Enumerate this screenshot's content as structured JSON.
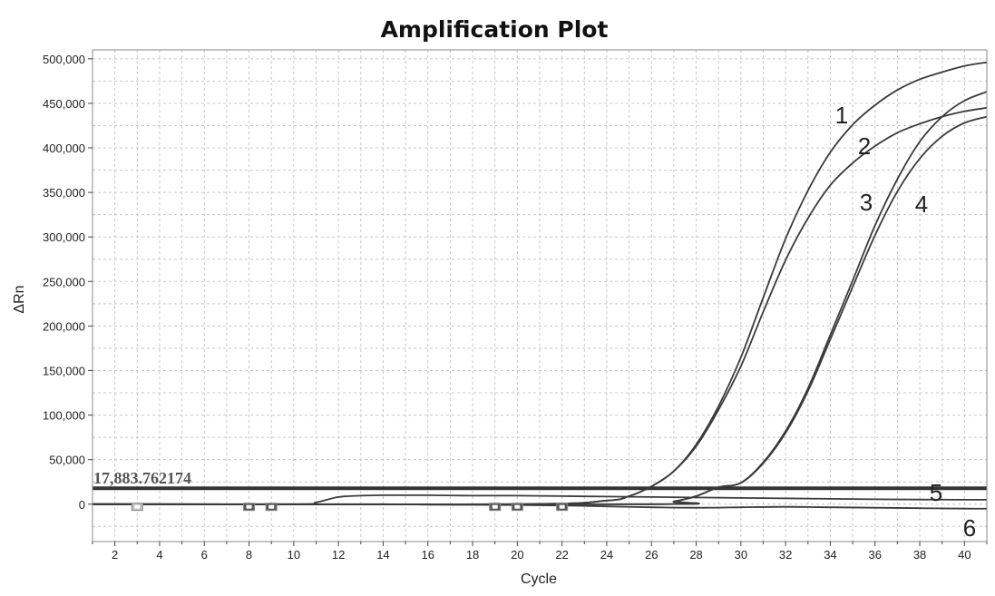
{
  "chart_data": {
    "type": "line",
    "title": "Amplification Plot",
    "xlabel": "Cycle",
    "ylabel": "ΔRn",
    "xlim": [
      1,
      41
    ],
    "ylim": [
      -42000,
      510000
    ],
    "x_ticks": [
      2,
      4,
      6,
      8,
      10,
      12,
      14,
      16,
      18,
      20,
      22,
      24,
      26,
      28,
      30,
      32,
      34,
      36,
      38,
      40
    ],
    "x_tick_labels": [
      "2",
      "4",
      "6",
      "8",
      "10",
      "12",
      "14",
      "16",
      "18",
      "20",
      "22",
      "24",
      "26",
      "28",
      "30",
      "32",
      "34",
      "36",
      "38",
      "40"
    ],
    "y_ticks": [
      0,
      50000,
      100000,
      150000,
      200000,
      250000,
      300000,
      350000,
      400000,
      450000,
      500000
    ],
    "y_tick_labels": [
      "0",
      "50,000",
      "100,000",
      "150,000",
      "200,000",
      "250,000",
      "300,000",
      "350,000",
      "400,000",
      "450,000",
      "500,000"
    ],
    "grid": true,
    "threshold": {
      "value": 17883.762174,
      "label": "17,883.762174"
    },
    "series": [
      {
        "name": "1",
        "x": [
          1,
          20,
          24,
          25,
          26,
          27,
          28,
          29,
          30,
          31,
          32,
          33,
          34,
          35,
          36,
          37,
          38,
          39,
          40,
          41
        ],
        "y": [
          0,
          0,
          4000,
          9000,
          20000,
          37000,
          67000,
          110000,
          165000,
          232000,
          298000,
          352000,
          395000,
          426000,
          448000,
          465000,
          477000,
          485000,
          492000,
          496000
        ]
      },
      {
        "name": "2",
        "x": [
          1,
          20,
          24,
          25,
          26,
          27,
          28,
          29,
          30,
          31,
          32,
          33,
          34,
          35,
          36,
          37,
          38,
          39,
          40,
          41
        ],
        "y": [
          0,
          0,
          4000,
          9000,
          20000,
          37000,
          65000,
          106000,
          155000,
          216000,
          274000,
          321000,
          358000,
          383000,
          402000,
          417000,
          427000,
          435000,
          441000,
          445000
        ]
      },
      {
        "name": "3",
        "x": [
          1,
          26,
          27,
          28,
          29,
          30,
          31,
          32,
          33,
          34,
          35,
          36,
          37,
          38,
          39,
          40,
          41
        ],
        "y": [
          0,
          0,
          3000,
          9000,
          19000,
          24000,
          47000,
          82000,
          130000,
          190000,
          251000,
          313000,
          365000,
          407000,
          435000,
          453000,
          463000
        ]
      },
      {
        "name": "4",
        "x": [
          1,
          26,
          27,
          28,
          29,
          30,
          31,
          32,
          33,
          34,
          35,
          36,
          37,
          38,
          39,
          40,
          41
        ],
        "y": [
          0,
          0,
          3000,
          9000,
          19000,
          24000,
          46000,
          80000,
          127000,
          185000,
          244000,
          302000,
          351000,
          388000,
          413000,
          428000,
          435000
        ]
      },
      {
        "name": "5",
        "x": [
          1,
          10,
          11,
          12,
          13,
          14,
          16,
          18,
          20,
          22,
          24,
          26,
          28,
          30,
          32,
          34,
          36,
          38,
          40,
          41
        ],
        "y": [
          0,
          0,
          2000,
          8000,
          9500,
          10000,
          10000,
          9500,
          9500,
          9000,
          8500,
          8000,
          7500,
          7000,
          6500,
          6000,
          5500,
          5200,
          5000,
          5000
        ]
      },
      {
        "name": "6",
        "x": [
          1,
          10,
          12,
          14,
          16,
          18,
          20,
          22,
          24,
          26,
          28,
          30,
          32,
          34,
          36,
          38,
          40,
          41
        ],
        "y": [
          0,
          0,
          0,
          0,
          -500,
          -800,
          -1000,
          -1500,
          -2500,
          -3500,
          -4000,
          -3500,
          -3000,
          -3500,
          -4000,
          -4500,
          -5000,
          -5000
        ]
      }
    ],
    "markers": [
      {
        "x": 3,
        "color": "#bdbdbd"
      },
      {
        "x": 8,
        "color": "#555555"
      },
      {
        "x": 9,
        "color": "#555555"
      },
      {
        "x": 19,
        "color": "#555555"
      },
      {
        "x": 20,
        "color": "#555555"
      },
      {
        "x": 22,
        "color": "#555555"
      }
    ]
  }
}
